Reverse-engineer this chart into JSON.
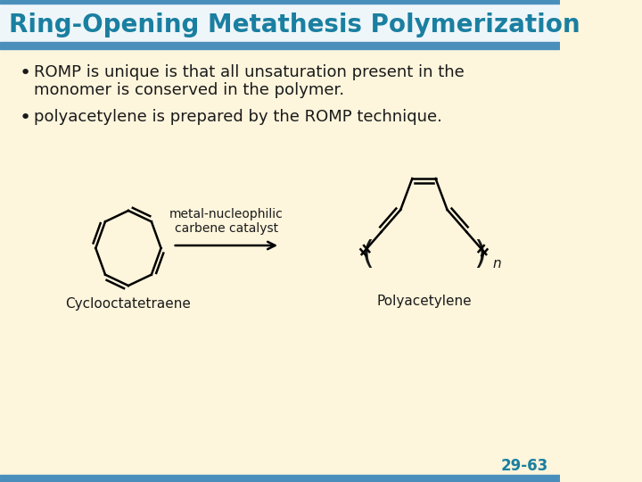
{
  "title": "Ring-Opening Metathesis Polymerization",
  "title_color": "#1a7fa0",
  "title_bg_color": "#eef6fa",
  "body_bg_color": "#fdf5dc",
  "bullet1_line1": "ROMP is unique is that all unsaturation present in the",
  "bullet1_line2": "monomer is conserved in the polymer.",
  "bullet2": "polyacetylene is prepared by the ROMP technique.",
  "catalyst_label_line1": "metal-nucleophilic",
  "catalyst_label_line2": "carbene catalyst",
  "monomer_label": "Cyclooctatetraene",
  "polymer_label": "Polyacetylene",
  "page_number": "29-63",
  "page_num_color": "#1a7fa0",
  "text_color": "#1a1a1a",
  "header_stripe_color": "#4a8fbb",
  "bullet_color": "#1a1a1a"
}
